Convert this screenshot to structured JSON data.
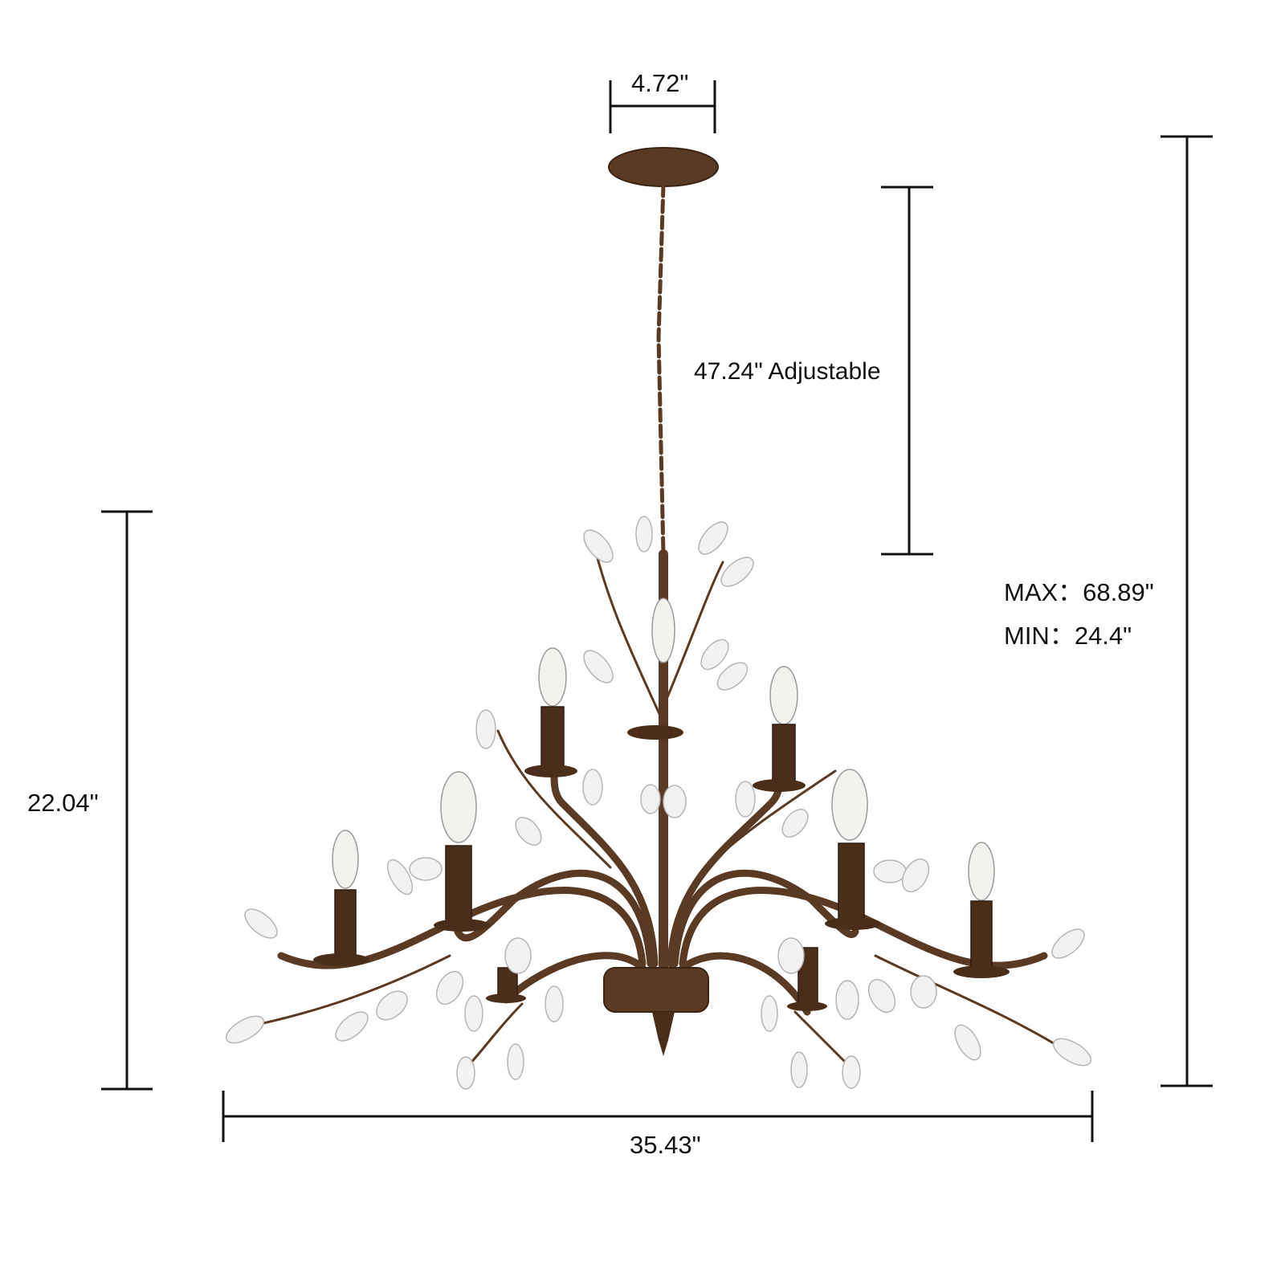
{
  "dimensions": {
    "canopy_width": "4.72\"",
    "chain_length": "47.24\" Adjustable",
    "max_height": "MAX：68.89\"",
    "min_height": "MIN：24.4\"",
    "body_height": "22.04\"",
    "body_width": "35.43\""
  },
  "colors": {
    "metal": "#5a3a22",
    "line": "#111111"
  }
}
